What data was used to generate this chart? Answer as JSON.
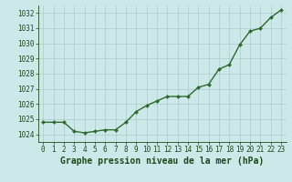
{
  "x": [
    0,
    1,
    2,
    3,
    4,
    5,
    6,
    7,
    8,
    9,
    10,
    11,
    12,
    13,
    14,
    15,
    16,
    17,
    18,
    19,
    20,
    21,
    22,
    23
  ],
  "y": [
    1024.8,
    1024.8,
    1024.8,
    1024.2,
    1024.1,
    1024.2,
    1024.3,
    1024.3,
    1024.8,
    1025.5,
    1025.9,
    1026.2,
    1026.5,
    1026.5,
    1026.5,
    1027.1,
    1027.3,
    1028.3,
    1028.6,
    1029.9,
    1030.8,
    1031.0,
    1031.7,
    1032.2
  ],
  "ylim": [
    1023.5,
    1032.5
  ],
  "yticks": [
    1024,
    1025,
    1026,
    1027,
    1028,
    1029,
    1030,
    1031,
    1032
  ],
  "xticks": [
    0,
    1,
    2,
    3,
    4,
    5,
    6,
    7,
    8,
    9,
    10,
    11,
    12,
    13,
    14,
    15,
    16,
    17,
    18,
    19,
    20,
    21,
    22,
    23
  ],
  "xlabel": "Graphe pression niveau de la mer (hPa)",
  "line_color": "#2d6a2d",
  "marker": "D",
  "marker_size": 2.0,
  "line_width": 1.0,
  "bg_color": "#cce8e8",
  "grid_color": "#aacccc",
  "text_color": "#1a4a1a",
  "tick_fontsize": 5.5,
  "xlabel_fontsize": 7.0
}
